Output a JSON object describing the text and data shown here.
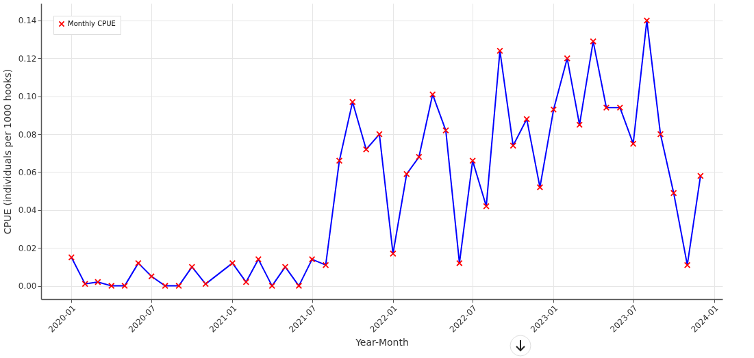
{
  "chart_data": {
    "type": "line",
    "xlabel": "Year-Month",
    "ylabel": "CPUE (individuals per 1000 hooks)",
    "x": [
      "2020-01",
      "2020-02",
      "2020-03",
      "2020-04",
      "2020-05",
      "2020-06",
      "2020-07",
      "2020-08",
      "2020-09",
      "2020-10",
      "2020-11",
      "2021-01",
      "2021-02",
      "2021-03",
      "2021-04",
      "2021-05",
      "2021-06",
      "2021-07",
      "2021-08",
      "2021-09",
      "2021-10",
      "2021-11",
      "2021-12",
      "2022-01",
      "2022-02",
      "2022-03",
      "2022-04",
      "2022-05",
      "2022-06",
      "2022-07",
      "2022-08",
      "2022-09",
      "2022-10",
      "2022-11",
      "2022-12",
      "2023-01",
      "2023-02",
      "2023-03",
      "2023-04",
      "2023-05",
      "2023-06",
      "2023-07",
      "2023-08",
      "2023-09",
      "2023-10",
      "2023-11",
      "2023-12"
    ],
    "series": [
      {
        "color": "#0000ff",
        "marker": "none",
        "values": [
          0.015,
          0.001,
          0.002,
          0.0,
          0.0,
          0.012,
          0.005,
          0.0,
          0.0,
          0.01,
          0.001,
          0.012,
          0.002,
          0.014,
          0.0,
          0.01,
          0.0,
          0.014,
          0.011,
          0.066,
          0.097,
          0.072,
          0.08,
          0.017,
          0.059,
          0.068,
          0.101,
          0.082,
          0.012,
          0.066,
          0.042,
          0.124,
          0.074,
          0.088,
          0.052,
          0.093,
          0.12,
          0.085,
          0.129,
          0.094,
          0.094,
          0.075,
          0.14,
          0.08,
          0.049,
          0.011,
          0.058
        ]
      },
      {
        "type": "scatter",
        "name": "Monthly CPUE",
        "color": "#ff0000",
        "marker": "cross",
        "values": [
          0.015,
          0.001,
          0.002,
          0.0,
          0.0,
          0.012,
          0.005,
          0.0,
          0.0,
          0.01,
          0.001,
          0.012,
          0.002,
          0.014,
          0.0,
          0.01,
          0.0,
          0.014,
          0.011,
          0.066,
          0.097,
          0.072,
          0.08,
          0.017,
          0.059,
          0.068,
          0.101,
          0.082,
          0.012,
          0.066,
          0.042,
          0.124,
          0.074,
          0.088,
          0.052,
          0.093,
          0.12,
          0.085,
          0.129,
          0.094,
          0.094,
          0.075,
          0.14,
          0.08,
          0.049,
          0.011,
          0.058
        ]
      }
    ],
    "xlim": [
      "2019-10-24",
      "2024-01-20"
    ],
    "xticks": [
      "2020-01",
      "2020-07",
      "2021-01",
      "2021-07",
      "2022-01",
      "2022-07",
      "2023-01",
      "2023-07",
      "2024-01"
    ],
    "ylim": [
      -0.007,
      0.149
    ],
    "yticks": [
      {
        "value": 0,
        "label": "0.00"
      },
      {
        "value": 0.02,
        "label": "0.02"
      },
      {
        "value": 0.04,
        "label": "0.04"
      },
      {
        "value": 0.06,
        "label": "0.06"
      },
      {
        "value": 0.08,
        "label": "0.08"
      },
      {
        "value": 0.1,
        "label": "0.10"
      },
      {
        "value": 0.12,
        "label": "0.12"
      },
      {
        "value": 0.14,
        "label": "0.14"
      }
    ],
    "grid": true,
    "legend": "top left",
    "line_style": "solid"
  }
}
